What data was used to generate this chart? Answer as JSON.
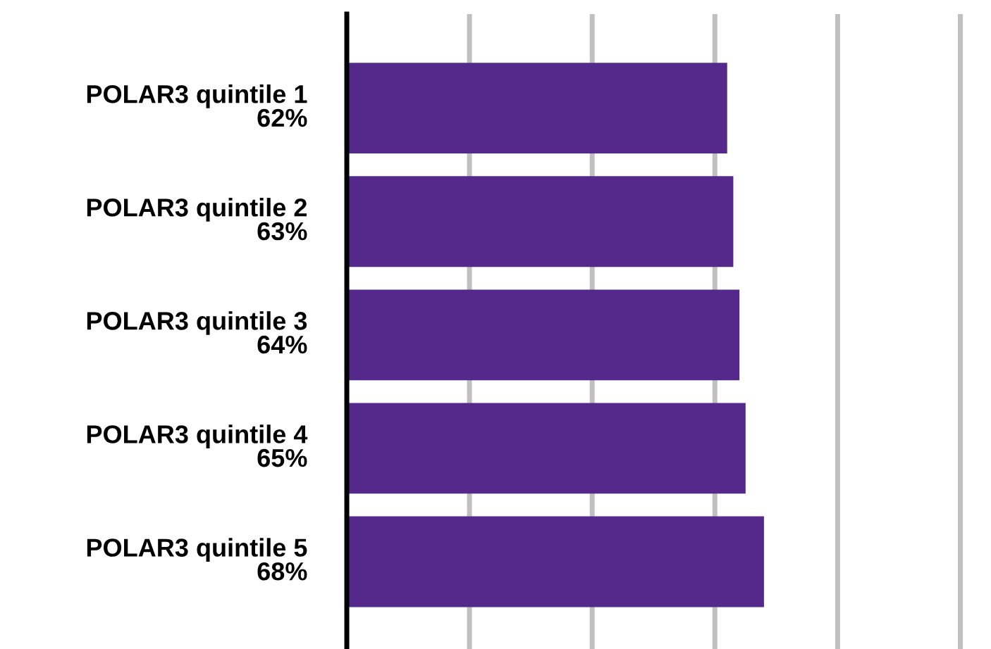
{
  "chart_data": {
    "type": "bar",
    "orientation": "horizontal",
    "categories": [
      "POLAR3 quintile 1",
      "POLAR3 quintile 2",
      "POLAR3 quintile 3",
      "POLAR3 quintile 4",
      "POLAR3 quintile 5"
    ],
    "values": [
      62,
      63,
      64,
      65,
      68
    ],
    "value_labels": [
      "62%",
      "63%",
      "64%",
      "65%",
      "68%"
    ],
    "color": "#55288c",
    "xticks": [
      {
        "value": 0,
        "label": null
      },
      {
        "value": 20,
        "label": null
      },
      {
        "value": 40,
        "label": null
      },
      {
        "value": 60,
        "label": null
      },
      {
        "value": 80,
        "label": null
      },
      {
        "value": 100,
        "label": null
      }
    ],
    "grid": "x",
    "tick_labels": "y"
  }
}
